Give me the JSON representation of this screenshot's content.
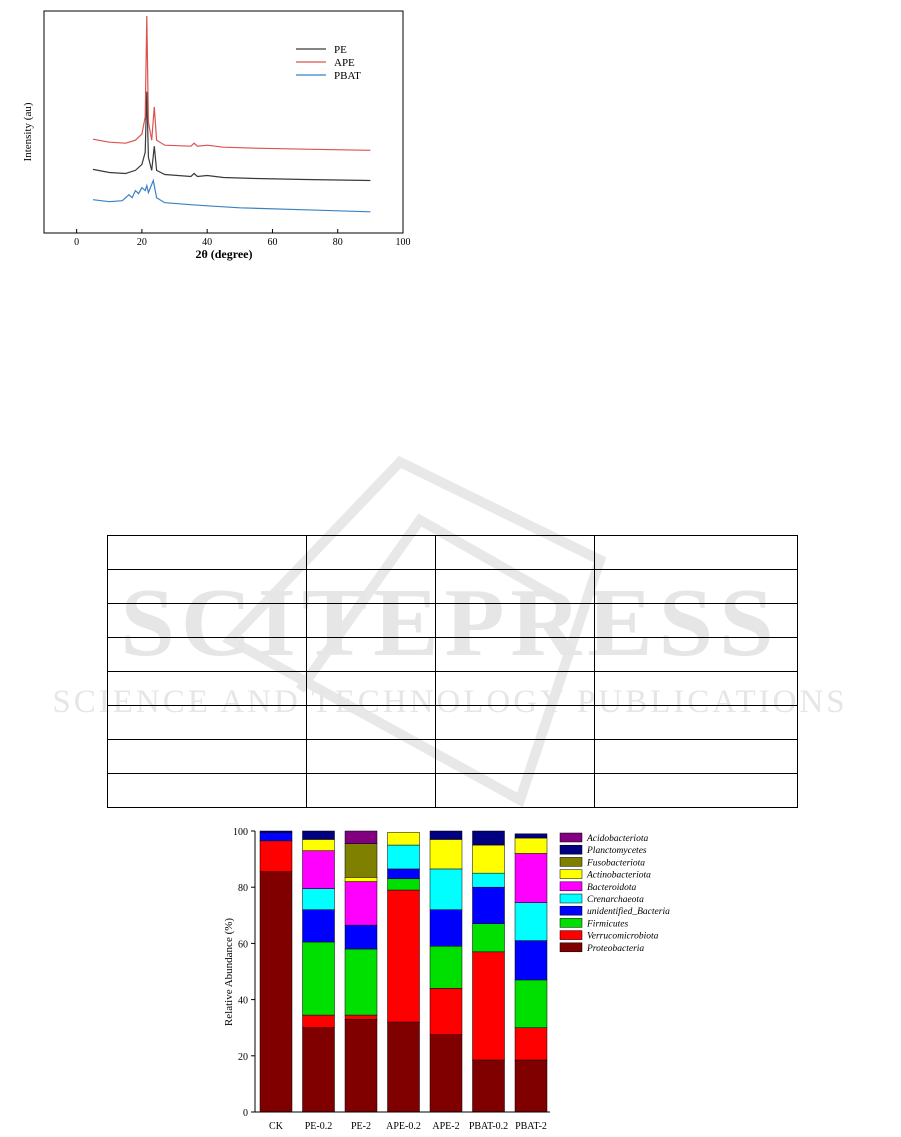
{
  "chart_data": [
    {
      "type": "line",
      "xlabel": "2θ (degree)",
      "ylabel": "Intensity (au)",
      "xlim": [
        -10,
        100
      ],
      "x_ticks": [
        0,
        20,
        40,
        60,
        80,
        100
      ],
      "legend_position": "top-right",
      "series": [
        {
          "name": "PE",
          "color": "#3a3a3a",
          "offset": 0.32,
          "points": [
            [
              5,
              0.43
            ],
            [
              10,
              0.4
            ],
            [
              15,
              0.39
            ],
            [
              18,
              0.42
            ],
            [
              20,
              0.48
            ],
            [
              21,
              0.6
            ],
            [
              21.5,
              1.2
            ],
            [
              22,
              0.55
            ],
            [
              23,
              0.42
            ],
            [
              23.8,
              0.66
            ],
            [
              24.5,
              0.42
            ],
            [
              27,
              0.38
            ],
            [
              35,
              0.36
            ],
            [
              36,
              0.39
            ],
            [
              37,
              0.36
            ],
            [
              40,
              0.37
            ],
            [
              45,
              0.35
            ],
            [
              55,
              0.34
            ],
            [
              70,
              0.33
            ],
            [
              90,
              0.32
            ]
          ]
        },
        {
          "name": "APE",
          "color": "#d9534f",
          "offset": 0.62,
          "points": [
            [
              5,
              0.73
            ],
            [
              10,
              0.7
            ],
            [
              15,
              0.69
            ],
            [
              18,
              0.72
            ],
            [
              20,
              0.78
            ],
            [
              21,
              0.95
            ],
            [
              21.5,
              1.95
            ],
            [
              22,
              0.9
            ],
            [
              23,
              0.72
            ],
            [
              23.8,
              1.05
            ],
            [
              24.5,
              0.72
            ],
            [
              27,
              0.67
            ],
            [
              35,
              0.66
            ],
            [
              36,
              0.69
            ],
            [
              37,
              0.66
            ],
            [
              40,
              0.67
            ],
            [
              45,
              0.65
            ],
            [
              55,
              0.64
            ],
            [
              70,
              0.63
            ],
            [
              90,
              0.62
            ]
          ]
        },
        {
          "name": "PBAT",
          "color": "#3b82c4",
          "offset": 0.0,
          "points": [
            [
              5,
              0.13
            ],
            [
              10,
              0.11
            ],
            [
              14,
              0.12
            ],
            [
              16,
              0.18
            ],
            [
              17,
              0.15
            ],
            [
              18,
              0.22
            ],
            [
              19,
              0.19
            ],
            [
              20,
              0.25
            ],
            [
              21,
              0.22
            ],
            [
              21.5,
              0.27
            ],
            [
              22,
              0.2
            ],
            [
              23.5,
              0.32
            ],
            [
              24.5,
              0.15
            ],
            [
              27,
              0.1
            ],
            [
              35,
              0.08
            ],
            [
              40,
              0.07
            ],
            [
              50,
              0.05
            ],
            [
              70,
              0.03
            ],
            [
              90,
              0.01
            ]
          ]
        }
      ]
    },
    {
      "type": "bar",
      "stacked": true,
      "ylabel": "Relative Abundance (%)",
      "ylim": [
        0,
        100
      ],
      "y_ticks": [
        0,
        20,
        40,
        60,
        80,
        100
      ],
      "legend_position": "right",
      "categories": [
        "CK",
        "PE-0.2",
        "PE-2",
        "APE-0.2",
        "APE-2",
        "PBAT-0.2",
        "PBAT-2"
      ],
      "series": [
        {
          "name": "Proteobacteria",
          "color": "#800000",
          "values": [
            85.5,
            30,
            33,
            32,
            27.5,
            18.5,
            18.5
          ]
        },
        {
          "name": "Verrucomicrobiota",
          "color": "#ff0000",
          "values": [
            11,
            4.5,
            1.5,
            47,
            16.5,
            38.5,
            11.5
          ]
        },
        {
          "name": "Firmicutes",
          "color": "#00e000",
          "values": [
            0,
            26,
            23.5,
            4,
            15,
            10,
            17
          ]
        },
        {
          "name": "unidentified_Bacteria",
          "color": "#0000ff",
          "values": [
            3,
            11.5,
            8.5,
            3.5,
            13,
            13,
            14
          ]
        },
        {
          "name": "Crenarchaeota",
          "color": "#00ffff",
          "values": [
            0,
            7.5,
            0,
            8.5,
            14.5,
            5,
            13.5
          ]
        },
        {
          "name": "Bacteroidota",
          "color": "#ff00ff",
          "values": [
            0,
            13.5,
            15.5,
            0,
            0,
            0,
            17.5
          ]
        },
        {
          "name": "Actinobacteriota",
          "color": "#ffff00",
          "values": [
            0,
            4,
            1.5,
            4.5,
            10.5,
            10,
            5.5
          ]
        },
        {
          "name": "Fusobacteriota",
          "color": "#808000",
          "values": [
            0,
            0,
            12,
            0,
            0,
            0,
            0
          ]
        },
        {
          "name": "Planctomycetes",
          "color": "#000080",
          "values": [
            0.5,
            3,
            0,
            0,
            3,
            5,
            1.5
          ]
        },
        {
          "name": "Acidobacteriota",
          "color": "#800080",
          "values": [
            0,
            0,
            4.5,
            0,
            0,
            0,
            0
          ]
        }
      ]
    }
  ],
  "watermark": {
    "title": "SCITEPRESS",
    "subtitle": "SCIENCE AND TECHNOLOGY PUBLICATIONS",
    "color": "#e6e6e6"
  },
  "table": {
    "rows": 8,
    "cols": 4
  }
}
